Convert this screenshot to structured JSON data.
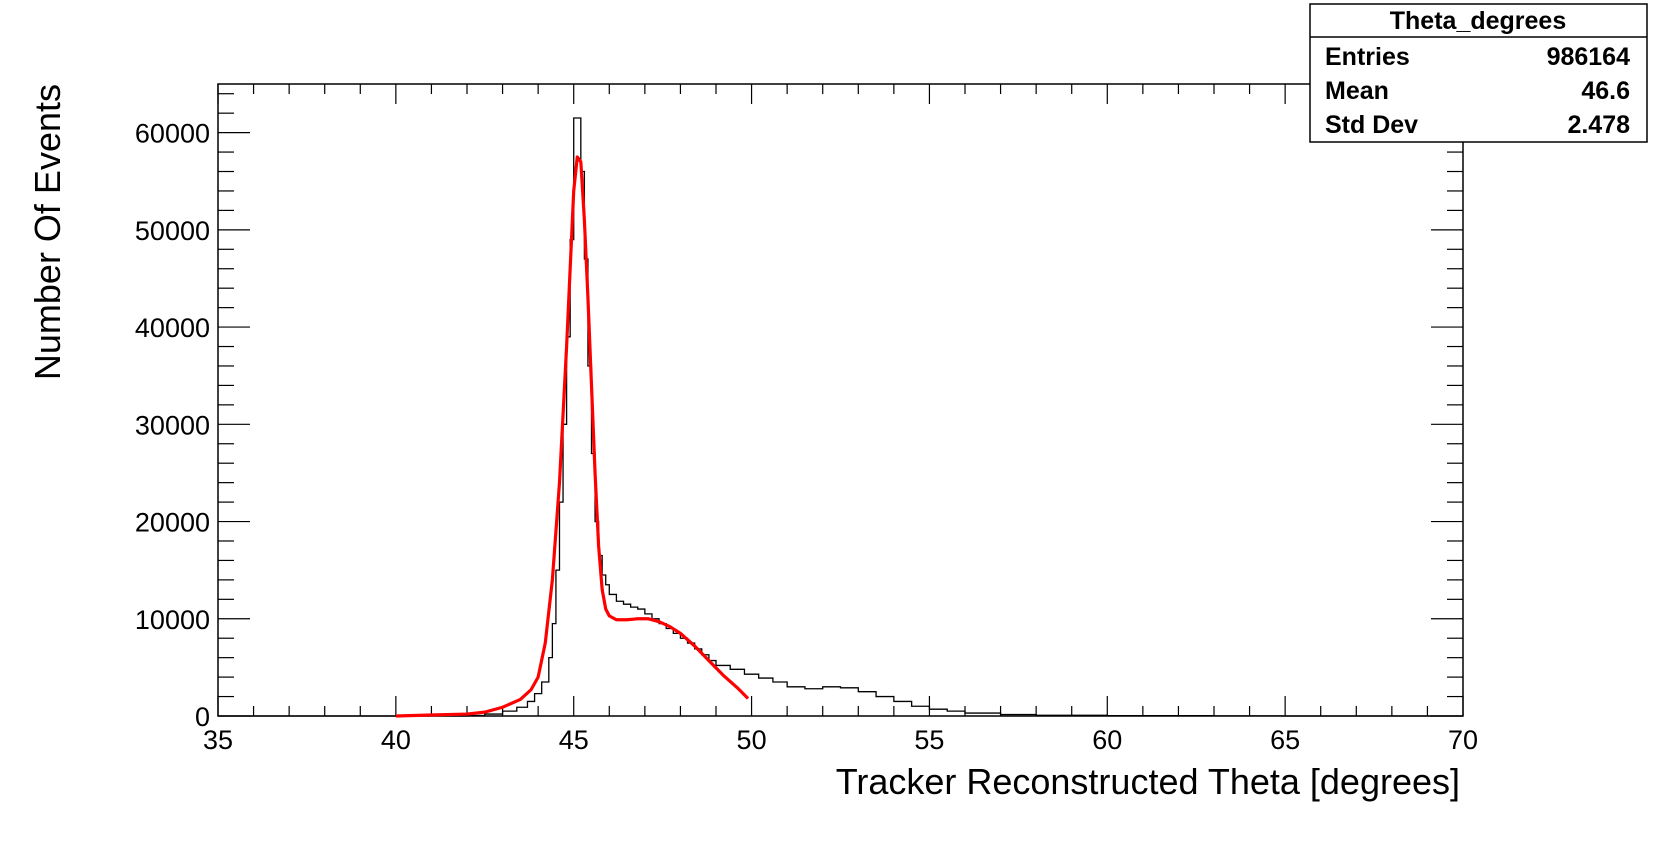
{
  "chart_data": {
    "type": "histogram",
    "title": "",
    "xlabel": "Tracker Reconstructed Theta [degrees]",
    "ylabel": "Number Of Events",
    "xlim": [
      35,
      70
    ],
    "ylim": [
      0,
      65000
    ],
    "xticks": [
      35,
      40,
      45,
      50,
      55,
      60,
      65,
      70
    ],
    "yticks": [
      0,
      10000,
      20000,
      30000,
      40000,
      50000,
      60000
    ],
    "xtick_labels": [
      "35",
      "40",
      "45",
      "50",
      "55",
      "60",
      "65",
      "70"
    ],
    "ytick_labels": [
      "0",
      "10000",
      "20000",
      "30000",
      "40000",
      "50000",
      "60000"
    ],
    "grid": false,
    "series": [
      {
        "kind": "histogram",
        "color": "#000000",
        "points": [
          [
            35,
            0
          ],
          [
            42,
            50
          ],
          [
            42.5,
            200
          ],
          [
            43,
            500
          ],
          [
            43.4,
            900
          ],
          [
            43.7,
            1500
          ],
          [
            43.9,
            2300
          ],
          [
            44.1,
            3500
          ],
          [
            44.3,
            6000
          ],
          [
            44.4,
            9500
          ],
          [
            44.5,
            15000
          ],
          [
            44.6,
            22000
          ],
          [
            44.7,
            30000
          ],
          [
            44.8,
            39000
          ],
          [
            44.9,
            49000
          ],
          [
            45.0,
            61500
          ],
          [
            45.1,
            61500
          ],
          [
            45.2,
            56000
          ],
          [
            45.3,
            47000
          ],
          [
            45.4,
            36000
          ],
          [
            45.5,
            27000
          ],
          [
            45.6,
            20000
          ],
          [
            45.7,
            16500
          ],
          [
            45.8,
            14500
          ],
          [
            45.9,
            13500
          ],
          [
            46.0,
            12500
          ],
          [
            46.2,
            11800
          ],
          [
            46.4,
            11500
          ],
          [
            46.6,
            11200
          ],
          [
            46.8,
            11000
          ],
          [
            47.0,
            10500
          ],
          [
            47.2,
            10000
          ],
          [
            47.4,
            9500
          ],
          [
            47.6,
            9000
          ],
          [
            47.8,
            8500
          ],
          [
            48.0,
            8000
          ],
          [
            48.2,
            7500
          ],
          [
            48.4,
            6900
          ],
          [
            48.6,
            6300
          ],
          [
            48.8,
            5700
          ],
          [
            49.0,
            5200
          ],
          [
            49.4,
            4800
          ],
          [
            49.8,
            4300
          ],
          [
            50.2,
            3900
          ],
          [
            50.6,
            3500
          ],
          [
            51.0,
            3000
          ],
          [
            51.5,
            2800
          ],
          [
            52.0,
            3000
          ],
          [
            52.5,
            2900
          ],
          [
            53.0,
            2500
          ],
          [
            53.5,
            2000
          ],
          [
            54.0,
            1500
          ],
          [
            54.5,
            1000
          ],
          [
            55.0,
            700
          ],
          [
            55.5,
            500
          ],
          [
            56.0,
            300
          ],
          [
            57.0,
            150
          ],
          [
            58.0,
            80
          ],
          [
            60.0,
            30
          ],
          [
            63.0,
            10
          ],
          [
            64.9,
            0
          ],
          [
            70,
            0
          ]
        ]
      },
      {
        "kind": "fit",
        "color": "#ff0000",
        "points": [
          [
            40,
            0
          ],
          [
            41,
            100
          ],
          [
            42,
            200
          ],
          [
            42.5,
            400
          ],
          [
            43,
            900
          ],
          [
            43.5,
            1700
          ],
          [
            43.8,
            2700
          ],
          [
            44.0,
            4000
          ],
          [
            44.2,
            7500
          ],
          [
            44.4,
            14000
          ],
          [
            44.6,
            24000
          ],
          [
            44.8,
            38000
          ],
          [
            44.9,
            46000
          ],
          [
            45.0,
            54000
          ],
          [
            45.1,
            57500
          ],
          [
            45.2,
            57000
          ],
          [
            45.3,
            51000
          ],
          [
            45.4,
            43000
          ],
          [
            45.5,
            34000
          ],
          [
            45.6,
            25000
          ],
          [
            45.7,
            17500
          ],
          [
            45.8,
            13000
          ],
          [
            45.9,
            11000
          ],
          [
            46.0,
            10300
          ],
          [
            46.2,
            9900
          ],
          [
            46.5,
            9900
          ],
          [
            46.8,
            10000
          ],
          [
            47.1,
            10000
          ],
          [
            47.4,
            9700
          ],
          [
            47.7,
            9200
          ],
          [
            48.0,
            8500
          ],
          [
            48.4,
            7200
          ],
          [
            48.8,
            5700
          ],
          [
            49.2,
            4200
          ],
          [
            49.6,
            2900
          ],
          [
            49.9,
            1800
          ]
        ]
      }
    ]
  },
  "stats_box": {
    "title": "Theta_degrees",
    "rows": [
      {
        "label": "Entries",
        "value": "986164"
      },
      {
        "label": "Mean",
        "value": "46.6"
      },
      {
        "label": "Std Dev",
        "value": "2.478"
      }
    ]
  }
}
